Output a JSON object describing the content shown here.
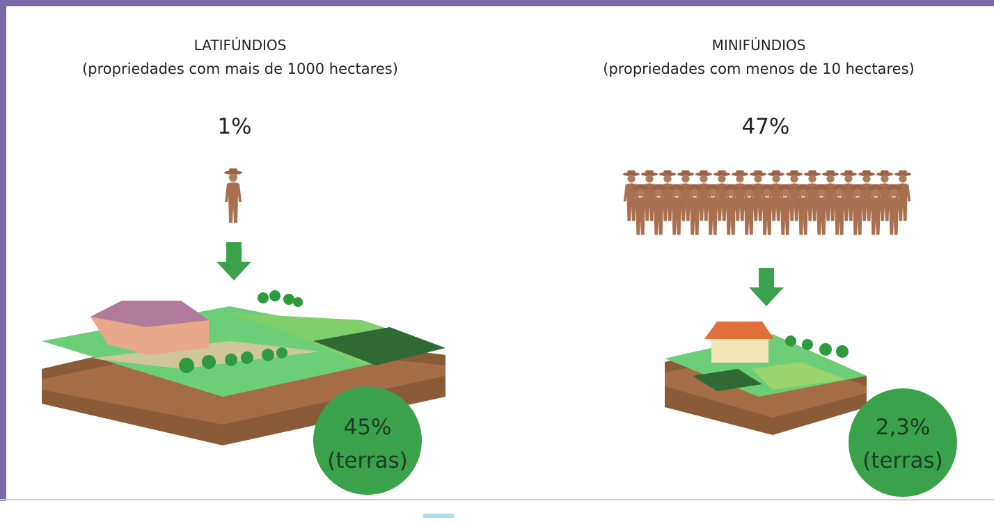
{
  "panels": [
    {
      "title": "LATIFÚNDIOS",
      "subtitle": "(propriedades com mais de 1000 hectares)",
      "people_share": "1%",
      "land_share": "45%",
      "land_label": "(terras)"
    },
    {
      "title": "MINIFÚNDIOS",
      "subtitle": "(propriedades com menos de 10 hectares)",
      "people_share": "47%",
      "land_share": "2,3%",
      "land_label": "(terras)"
    }
  ]
}
